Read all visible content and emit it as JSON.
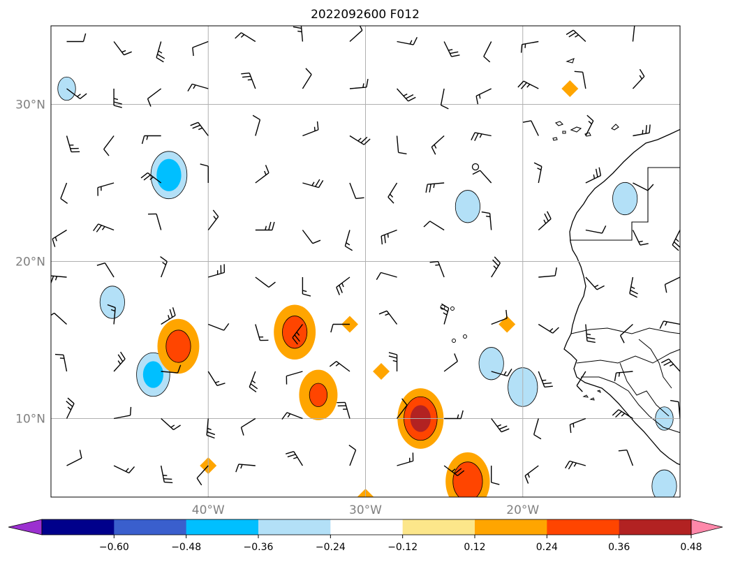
{
  "chart_data": {
    "type": "heatmap",
    "title": "2022092600 F012",
    "xlabel": "",
    "ylabel": "",
    "projection": "map",
    "xlim": [
      -50,
      -10
    ],
    "ylim": [
      5,
      35
    ],
    "grid": true,
    "x_ticks": [
      {
        "value": -40,
        "label": "40°W"
      },
      {
        "value": -30,
        "label": "30°W"
      },
      {
        "value": -20,
        "label": "20°W"
      }
    ],
    "y_ticks": [
      {
        "value": 10,
        "label": "10°N"
      },
      {
        "value": 20,
        "label": "20°N"
      },
      {
        "value": 30,
        "label": "30°N"
      }
    ],
    "colorbar": {
      "orientation": "horizontal",
      "extend": "both",
      "bounds": [
        -0.72,
        -0.6,
        -0.48,
        -0.36,
        -0.24,
        -0.12,
        0.12,
        0.24,
        0.36,
        0.48,
        0.6,
        0.72
      ],
      "tick_values": [
        -0.6,
        -0.48,
        -0.36,
        -0.24,
        -0.12,
        0.12,
        0.24,
        0.36,
        0.48,
        0.6
      ],
      "tick_labels": [
        "−0.60",
        "−0.48",
        "−0.36",
        "−0.24",
        "−0.12",
        "0.12",
        "0.24",
        "0.36",
        "0.48",
        "0.60"
      ],
      "under_color": "#9b30d0",
      "over_color": "#ff88aa",
      "colors": [
        "#00008b",
        "#3a5fcd",
        "#00bfff",
        "#b3e0f7",
        "#ffffff",
        "#fce68a",
        "#ffa500",
        "#ff4500",
        "#b22222"
      ]
    },
    "features": [
      {
        "lon": -42.5,
        "lat": 25.5,
        "value": -0.45
      },
      {
        "lon": -43.5,
        "lat": 12.8,
        "value": -0.4
      },
      {
        "lon": -46.1,
        "lat": 17.4,
        "value": -0.3
      },
      {
        "lon": -49.0,
        "lat": 31.0,
        "value": -0.25
      },
      {
        "lon": -32.0,
        "lat": 32.0,
        "value": -0.15
      },
      {
        "lon": -28.0,
        "lat": 18.0,
        "value": -0.15
      },
      {
        "lon": -23.5,
        "lat": 23.5,
        "value": -0.3
      },
      {
        "lon": -22.0,
        "lat": 13.5,
        "value": -0.3
      },
      {
        "lon": -20.0,
        "lat": 12.0,
        "value": -0.35
      },
      {
        "lon": -13.5,
        "lat": 24.0,
        "value": -0.3
      },
      {
        "lon": -13.0,
        "lat": 15.0,
        "value": -0.15
      },
      {
        "lon": -11.0,
        "lat": 10.0,
        "value": -0.25
      },
      {
        "lon": -11.0,
        "lat": 5.7,
        "value": -0.3
      },
      {
        "lon": -41.9,
        "lat": 14.6,
        "value": 0.3
      },
      {
        "lon": -34.5,
        "lat": 15.5,
        "value": 0.3
      },
      {
        "lon": -33.0,
        "lat": 11.5,
        "value": 0.25
      },
      {
        "lon": -26.5,
        "lat": 10.0,
        "value": 0.4
      },
      {
        "lon": -23.5,
        "lat": 6.0,
        "value": 0.35
      },
      {
        "lon": -31.0,
        "lat": 16.0,
        "value": 0.18
      },
      {
        "lon": -29.0,
        "lat": 13.0,
        "value": 0.18
      },
      {
        "lon": -21.0,
        "lat": 16.0,
        "value": 0.18
      },
      {
        "lon": -40.0,
        "lat": 7.0,
        "value": 0.18
      },
      {
        "lon": -17.0,
        "lat": 31.0,
        "value": 0.18
      },
      {
        "lon": -30.0,
        "lat": 5.0,
        "value": 0.18
      }
    ],
    "wind_barbs": {
      "lons": [
        -49,
        -46,
        -43,
        -40,
        -37,
        -34,
        -31,
        -28,
        -25,
        -22,
        -19,
        -16,
        -13,
        -10
      ],
      "lats": [
        34,
        31,
        28,
        25,
        22,
        19,
        16,
        13,
        10,
        7
      ]
    }
  }
}
